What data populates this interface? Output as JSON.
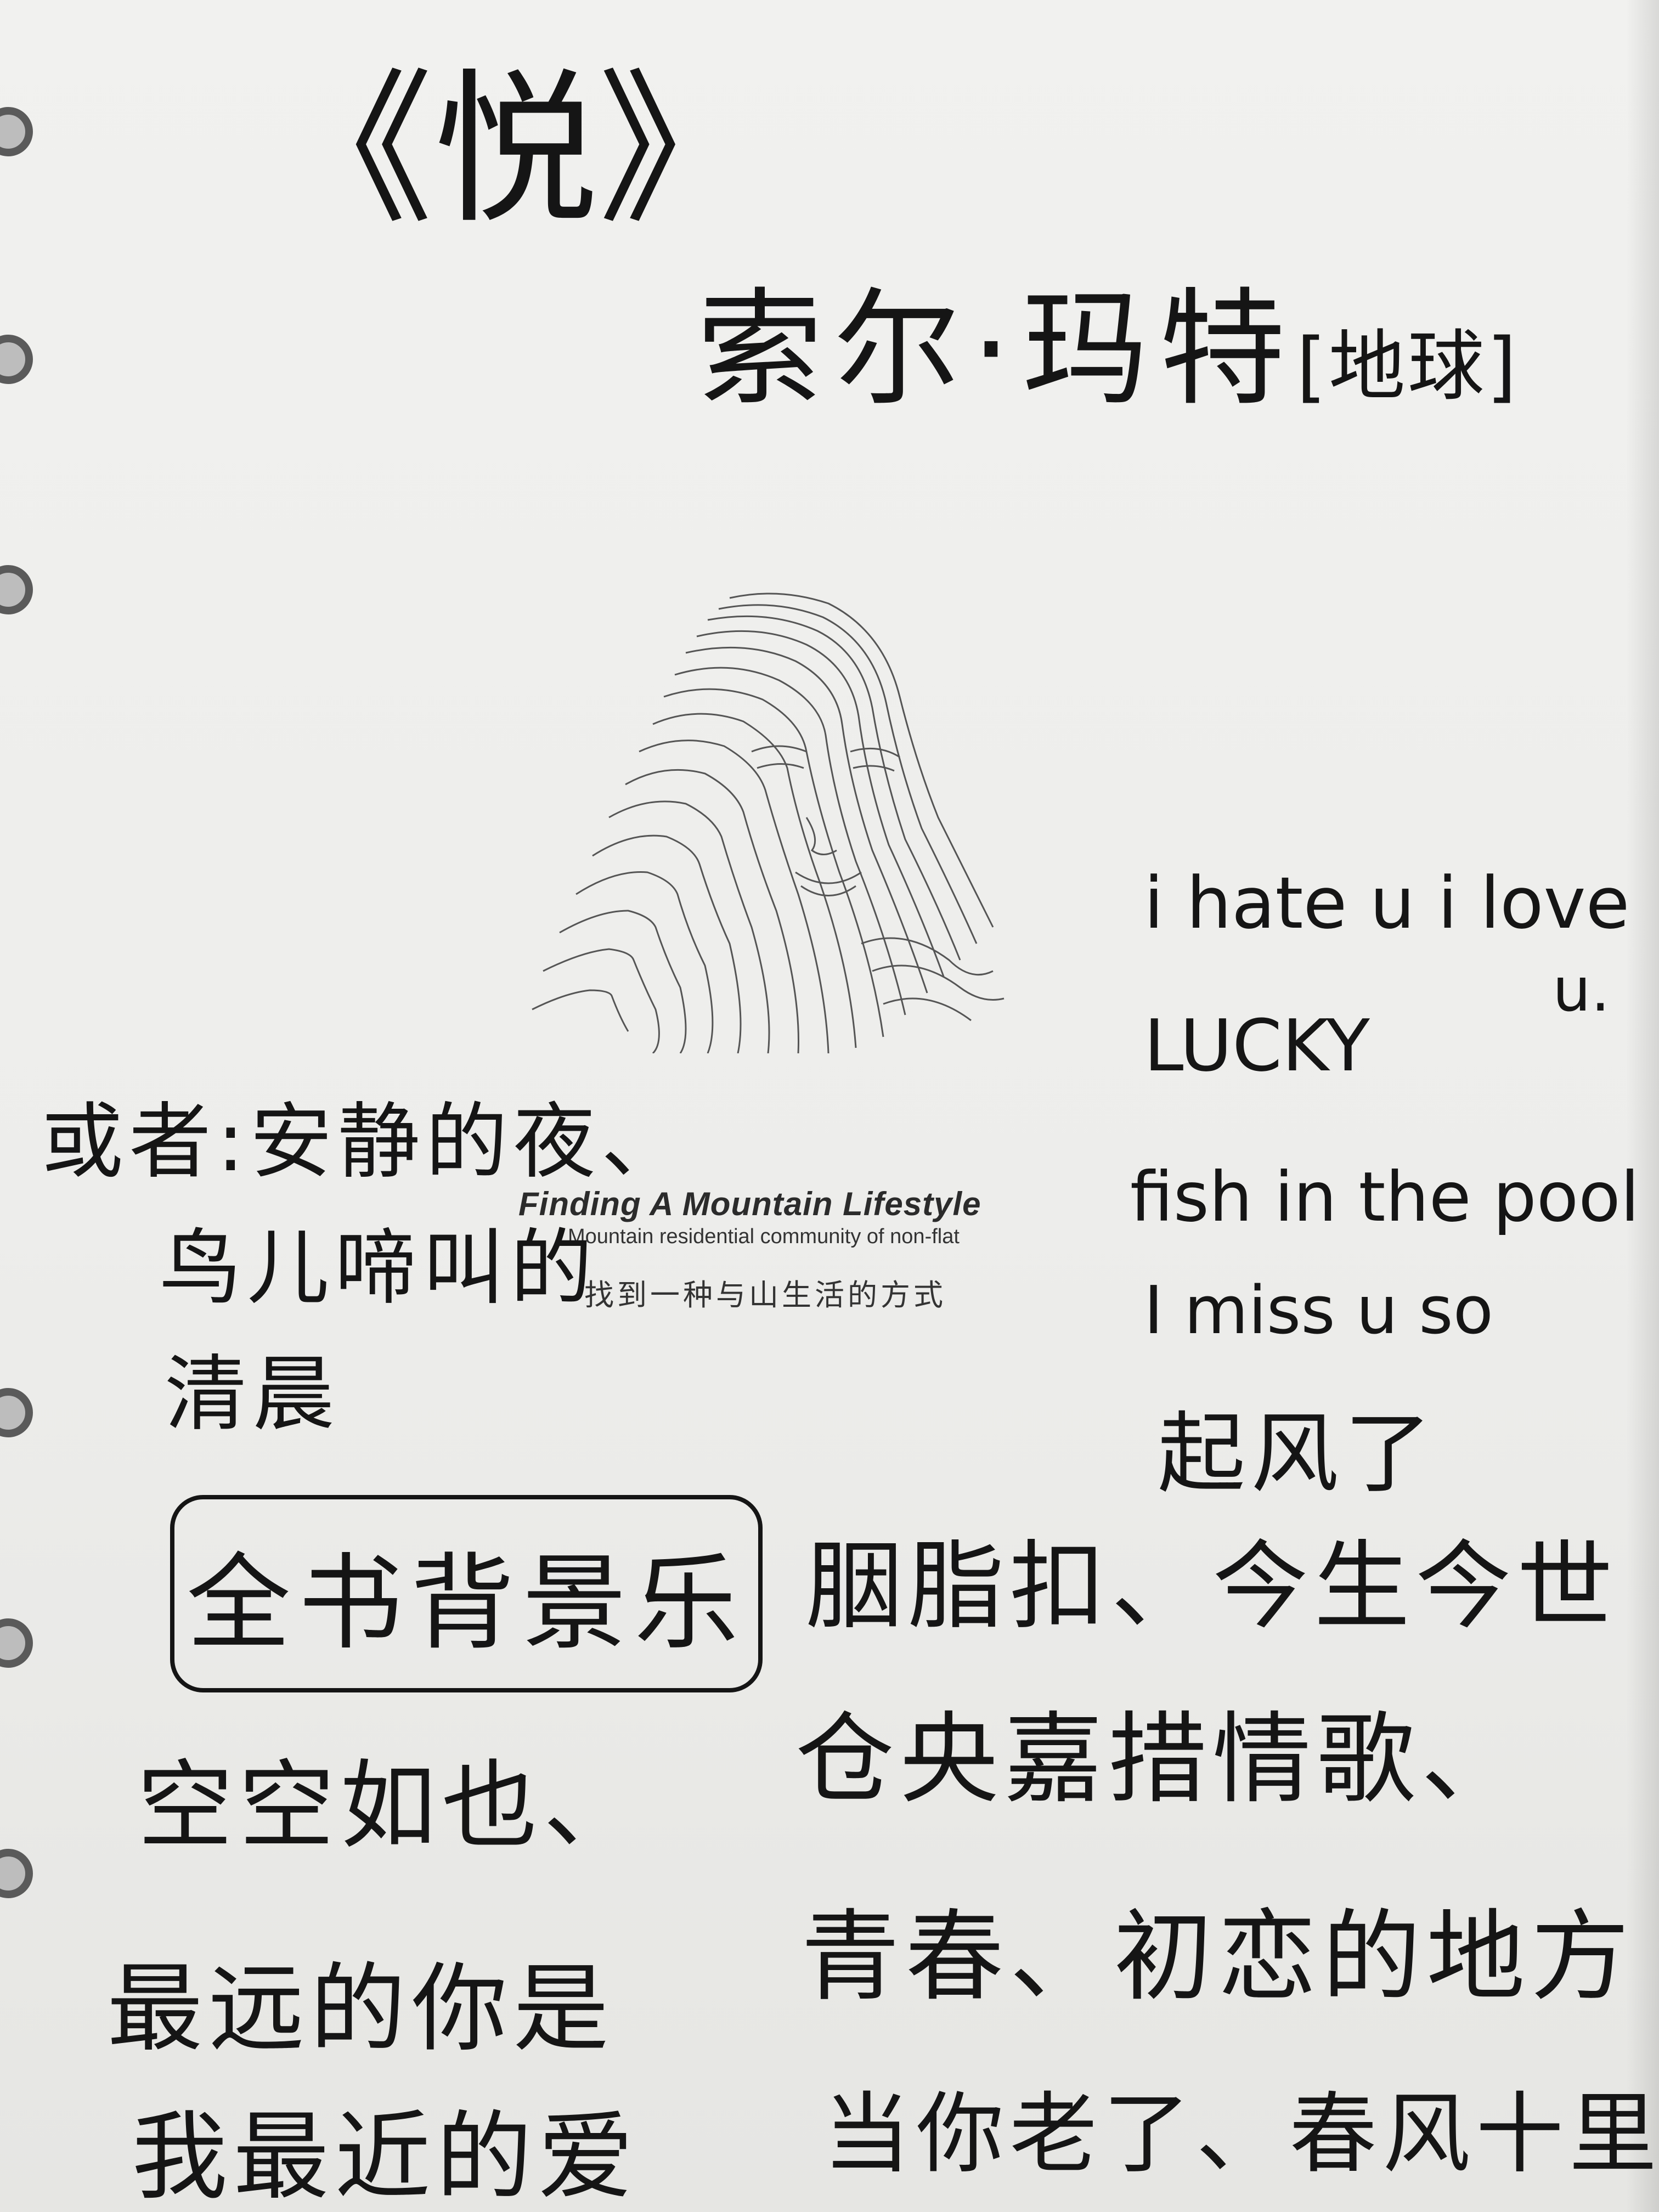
{
  "title": "《悦》",
  "author": {
    "name": "索尔·玛特",
    "tag": "[地球]"
  },
  "brand": {
    "headline": "Finding A Mountain Lifestyle",
    "subline": "Mountain residential community of non-flat",
    "chinese": "找到一种与山生活的方式"
  },
  "left_notes": [
    "或者:安静的夜、",
    "鸟儿啼叫的",
    "清晨"
  ],
  "english_notes": [
    "i hate u i love",
    "u.",
    "LUCKY",
    "fish in the pool",
    "I miss u so",
    "起风了"
  ],
  "box_label": "全书背景乐",
  "right_songs": [
    "胭脂扣、今生今世",
    "仓央嘉措情歌、",
    "青春、初恋的地方",
    "当你老了、春风十里"
  ],
  "left_songs": [
    "空空如也、",
    "最远的你是",
    "我最近的爱"
  ]
}
